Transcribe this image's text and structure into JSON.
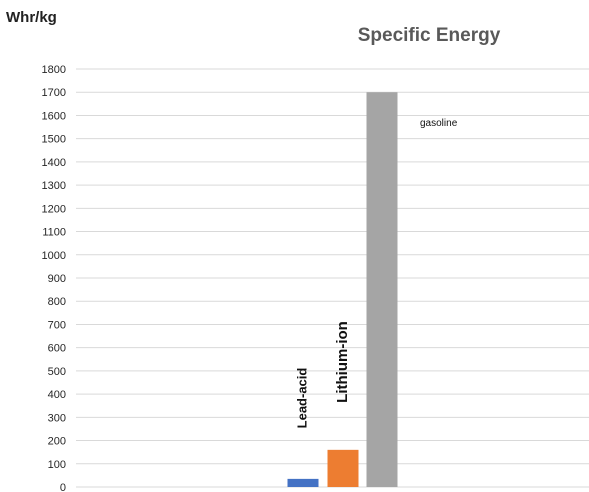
{
  "chart_data": {
    "type": "bar",
    "title": "Specific Energy",
    "ylabel": "Whr/kg",
    "xlabel": "",
    "categories": [
      "Lead-acid",
      "Lithium-ion",
      "gasoline"
    ],
    "values": [
      35,
      160,
      1700
    ],
    "colors": [
      "#4472c4",
      "#ed7d31",
      "#a5a5a5"
    ],
    "ylim": [
      0,
      1800
    ],
    "ytick_step": 100,
    "grid": true,
    "legend": "none",
    "bar_labels": [
      {
        "text": "Lead-acid",
        "orientation": "vertical"
      },
      {
        "text": "Lithium-ion",
        "orientation": "vertical"
      },
      {
        "text": "gasoline",
        "orientation": "horizontal"
      }
    ]
  }
}
